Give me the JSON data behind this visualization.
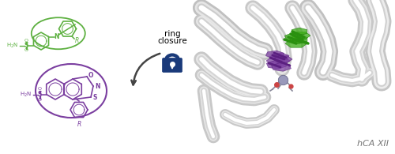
{
  "green": "#5db040",
  "purple": "#7b3fa0",
  "arrow_color": "#555555",
  "lock_blue": "#1a3a7a",
  "lock_shackle": "#1a3a7a",
  "ribbon_color": "#d8d8d8",
  "ribbon_outline": "#bbbbbb",
  "ribbon_white": "#f0f0f0",
  "green_ligand": "#3a9e20",
  "purple_ligand": "#7b3fa0",
  "hca_color": "#555555",
  "bg": "white",
  "ring_closure_lines": [
    "ring",
    "closure"
  ],
  "hca_label": "hCA XII"
}
